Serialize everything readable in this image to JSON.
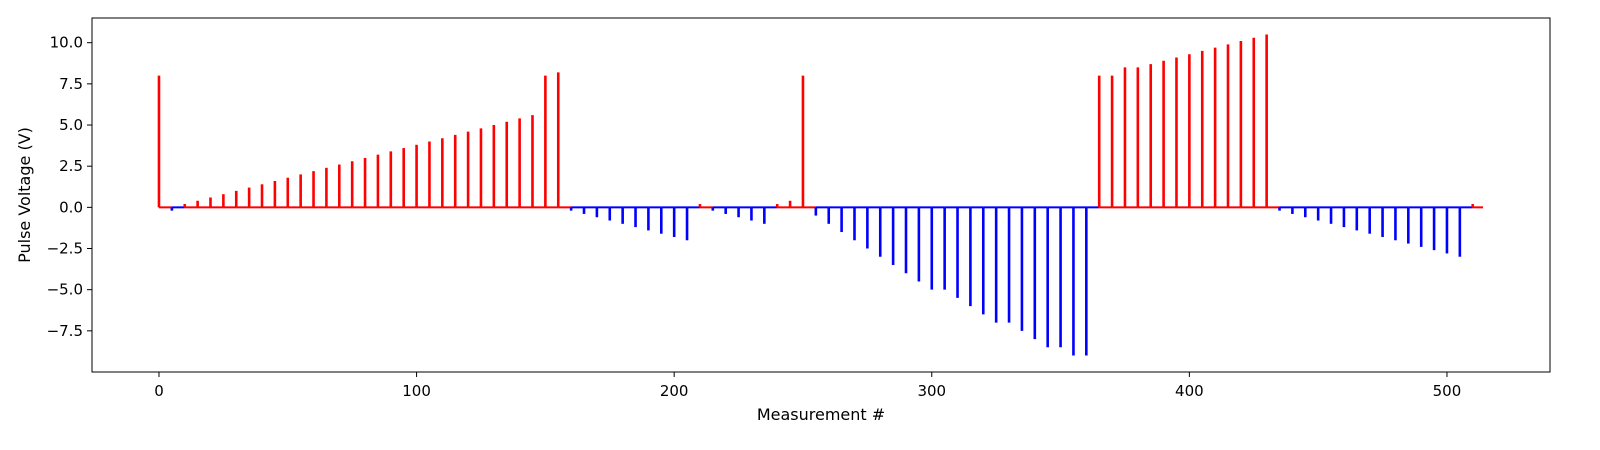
{
  "chart_data": {
    "type": "bar",
    "title": "",
    "xlabel": "Measurement #",
    "ylabel": "Pulse Voltage (V)",
    "xlim": [
      -26,
      540
    ],
    "ylim": [
      -10.0,
      11.5
    ],
    "x_ticks": [
      0,
      100,
      200,
      300,
      400,
      500
    ],
    "y_ticks": [
      -7.5,
      -5.0,
      -2.5,
      0.0,
      2.5,
      5.0,
      7.5,
      10.0
    ],
    "x_tick_labels": [
      "0",
      "100",
      "200",
      "300",
      "400",
      "500"
    ],
    "y_tick_labels": [
      "−7.5",
      "−5.0",
      "−2.5",
      "0.0",
      "2.5",
      "5.0",
      "7.5",
      "10.0"
    ],
    "grid": false,
    "baseline_range": [
      0,
      514
    ],
    "colors": {
      "positive": "#ff0000",
      "negative": "#0000ff"
    },
    "series": [
      {
        "x": [
          0,
          5,
          10,
          15,
          20,
          25,
          30,
          35,
          40,
          45,
          50,
          55,
          60,
          65,
          70,
          75,
          80,
          85,
          90,
          95,
          100,
          105,
          110,
          115,
          120,
          125,
          130,
          135,
          140,
          145,
          150,
          155,
          160,
          165,
          170,
          175,
          180,
          185,
          190,
          195,
          200,
          205,
          210,
          215,
          220,
          225,
          230,
          235,
          240,
          245,
          250,
          255,
          260,
          265,
          270,
          275,
          280,
          285,
          290,
          295,
          300,
          305,
          310,
          315,
          320,
          325,
          330,
          335,
          340,
          345,
          350,
          355,
          360,
          365,
          370,
          375,
          380,
          385,
          390,
          395,
          400,
          405,
          410,
          415,
          420,
          425,
          430,
          435,
          440,
          445,
          450,
          455,
          460,
          465,
          470,
          475,
          480,
          485,
          490,
          495,
          500,
          505,
          510
        ],
        "values": [
          8.0,
          -0.2,
          0.2,
          0.4,
          0.6,
          0.8,
          1.0,
          1.2,
          1.4,
          1.6,
          1.8,
          2.0,
          2.2,
          2.4,
          2.6,
          2.8,
          3.0,
          3.2,
          3.4,
          3.6,
          3.8,
          4.0,
          4.2,
          4.4,
          4.6,
          4.8,
          5.0,
          5.2,
          5.4,
          5.6,
          8.0,
          8.2,
          -0.2,
          -0.4,
          -0.6,
          -0.8,
          -1.0,
          -1.2,
          -1.4,
          -1.6,
          -1.8,
          -2.0,
          0.2,
          -0.2,
          -0.4,
          -0.6,
          -0.8,
          -1.0,
          0.2,
          0.4,
          8.0,
          -0.5,
          -1.0,
          -1.5,
          -2.0,
          -2.5,
          -3.0,
          -3.5,
          -4.0,
          -4.5,
          -5.0,
          -5.0,
          -5.5,
          -6.0,
          -6.5,
          -7.0,
          -7.0,
          -7.5,
          -8.0,
          -8.5,
          -8.5,
          -9.0,
          -9.0,
          8.0,
          8.0,
          8.5,
          8.5,
          8.7,
          8.9,
          9.1,
          9.3,
          9.5,
          9.7,
          9.9,
          10.1,
          10.3,
          10.5,
          -0.2,
          -0.4,
          -0.6,
          -0.8,
          -1.0,
          -1.2,
          -1.4,
          -1.6,
          -1.8,
          -2.0,
          -2.2,
          -2.4,
          -2.6,
          -2.8,
          -3.0,
          0.2
        ]
      }
    ]
  }
}
